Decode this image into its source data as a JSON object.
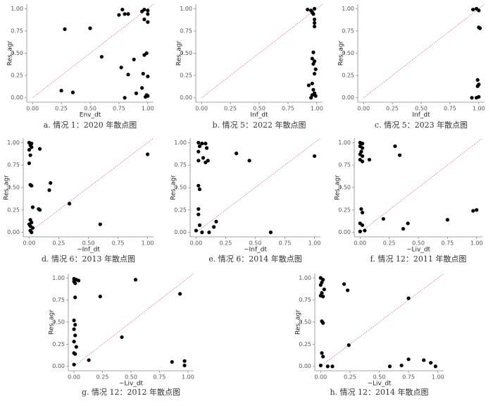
{
  "chart_data": [
    {
      "type": "scatter",
      "title": "a. 情况 1：2020 年散点图",
      "xlabel": "Env_dt",
      "ylabel": "Res_agr",
      "color": "#000000",
      "diagonal": true,
      "x": [
        0.28,
        0.5,
        0.6,
        0.25,
        0.35,
        0.75,
        0.78,
        0.8,
        0.83,
        0.77,
        0.8,
        0.88,
        0.9,
        0.95,
        0.97,
        1.0,
        1.0,
        0.97,
        1.0,
        0.97,
        0.99,
        0.96,
        1.0,
        0.95,
        0.99,
        1.0,
        0.98,
        0.83
      ],
      "y": [
        0.77,
        0.78,
        0.46,
        0.08,
        0.06,
        0.93,
        0.99,
        0.94,
        0.94,
        0.34,
        0.0,
        0.43,
        0.05,
        0.97,
        0.99,
        0.98,
        0.94,
        0.88,
        0.85,
        0.48,
        0.5,
        0.27,
        0.24,
        0.11,
        0.03,
        0.02,
        0.01,
        0.26
      ],
      "xlim": [
        -0.05,
        1.05
      ],
      "ylim": [
        -0.05,
        1.05
      ],
      "xticks": [
        {
          "value": 0,
          "label": "0.00"
        },
        {
          "value": 0.25,
          "label": "0.25"
        },
        {
          "value": 0.5,
          "label": "0.50"
        },
        {
          "value": 0.75,
          "label": "0.75"
        },
        {
          "value": 1,
          "label": "1.00"
        }
      ],
      "yticks": [
        {
          "value": 0,
          "label": "0.00"
        },
        {
          "value": 0.25,
          "label": "0.25"
        },
        {
          "value": 0.5,
          "label": "0.50"
        },
        {
          "value": 0.75,
          "label": "0.75"
        },
        {
          "value": 1,
          "label": "1.00"
        }
      ]
    },
    {
      "type": "scatter",
      "title": "b. 情况 5：2022 年散点图",
      "xlabel": "Inf_dt",
      "ylabel": "Res_agr",
      "color": "#000000",
      "diagonal": true,
      "x": [
        0.92,
        0.95,
        0.96,
        0.97,
        0.98,
        0.98,
        0.98,
        0.98,
        0.97,
        0.96,
        0.98,
        0.97,
        0.99,
        0.98,
        0.96,
        0.93,
        0.97,
        0.98,
        0.96,
        0.99,
        0.95
      ],
      "y": [
        0.99,
        0.98,
        0.96,
        0.94,
        1.0,
        0.88,
        0.84,
        0.8,
        0.51,
        0.44,
        0.41,
        0.38,
        0.32,
        0.27,
        0.16,
        0.14,
        0.09,
        0.05,
        0.03,
        0.02,
        0.0
      ],
      "xlim": [
        -0.05,
        1.05
      ],
      "ylim": [
        -0.05,
        1.05
      ],
      "xticks": [
        {
          "value": 0,
          "label": "0.00"
        },
        {
          "value": 0.25,
          "label": "0.25"
        },
        {
          "value": 0.5,
          "label": "0.50"
        },
        {
          "value": 0.75,
          "label": "0.75"
        },
        {
          "value": 1,
          "label": "1.00"
        }
      ],
      "yticks": [
        {
          "value": 0,
          "label": "0.00"
        },
        {
          "value": 0.25,
          "label": "0.25"
        },
        {
          "value": 0.5,
          "label": "0.50"
        },
        {
          "value": 0.75,
          "label": "0.75"
        },
        {
          "value": 1,
          "label": "1.00"
        }
      ]
    },
    {
      "type": "scatter",
      "title": "c. 情况 5：2023 年散点图",
      "xlabel": "Inf_dt",
      "ylabel": "Res_agr",
      "color": "#000000",
      "diagonal": true,
      "x": [
        0.95,
        0.98,
        1.0,
        1.0,
        1.01,
        0.99,
        1.0,
        0.99,
        0.94,
        0.98,
        1.0
      ],
      "y": [
        0.99,
        1.0,
        0.98,
        0.79,
        0.78,
        0.2,
        0.15,
        0.13,
        0.0,
        0.0,
        0.01
      ],
      "xlim": [
        -0.05,
        1.05
      ],
      "ylim": [
        -0.05,
        1.05
      ],
      "xticks": [
        {
          "value": 0,
          "label": "0.00"
        },
        {
          "value": 0.25,
          "label": "0.25"
        },
        {
          "value": 0.5,
          "label": "0.50"
        },
        {
          "value": 0.75,
          "label": "0.75"
        },
        {
          "value": 1,
          "label": "1.00"
        }
      ],
      "yticks": [
        {
          "value": 0,
          "label": "0.00"
        },
        {
          "value": 0.25,
          "label": "0.25"
        },
        {
          "value": 0.5,
          "label": "0.50"
        },
        {
          "value": 0.75,
          "label": "0.75"
        },
        {
          "value": 1,
          "label": "1.00"
        }
      ]
    },
    {
      "type": "scatter",
      "title": "d. 情况 6：2013 年散点图",
      "xlabel": "~Inf_dt",
      "ylabel": "Res_agr",
      "color": "#000000",
      "diagonal": true,
      "x": [
        0.0,
        0.02,
        0.01,
        0.02,
        0.0,
        0.01,
        0.0,
        0.09,
        0.01,
        0.02,
        0.18,
        0.17,
        0.03,
        0.08,
        0.09,
        0.34,
        0.01,
        0.02,
        0.0,
        0.01,
        0.03,
        0.01,
        0.02,
        0.6,
        1.0
      ],
      "y": [
        1.0,
        0.99,
        0.97,
        0.95,
        0.92,
        0.86,
        0.77,
        0.93,
        0.53,
        0.52,
        0.55,
        0.47,
        0.28,
        0.26,
        0.25,
        0.32,
        0.14,
        0.11,
        0.09,
        0.07,
        0.05,
        0.02,
        0.0,
        0.09,
        0.87
      ],
      "xlim": [
        -0.05,
        1.05
      ],
      "ylim": [
        -0.05,
        1.05
      ],
      "xticks": [
        {
          "value": 0,
          "label": "0.00"
        },
        {
          "value": 0.25,
          "label": "0.25"
        },
        {
          "value": 0.5,
          "label": "0.50"
        },
        {
          "value": 0.75,
          "label": "0.75"
        },
        {
          "value": 1,
          "label": "1.00"
        }
      ],
      "yticks": [
        {
          "value": 0,
          "label": "0.00"
        },
        {
          "value": 0.25,
          "label": "0.25"
        },
        {
          "value": 0.5,
          "label": "0.50"
        },
        {
          "value": 0.75,
          "label": "0.75"
        },
        {
          "value": 1,
          "label": "1.00"
        }
      ]
    },
    {
      "type": "scatter",
      "title": "e. 情况 6：2014 年散点图",
      "xlabel": "~Inf_dt",
      "ylabel": "Res_agr",
      "color": "#000000",
      "diagonal": true,
      "x": [
        0.02,
        0.05,
        0.08,
        0.03,
        0.09,
        0.02,
        0.06,
        0.1,
        0.08,
        0.02,
        0.34,
        0.45,
        1.0,
        0.02,
        0.03,
        0.02,
        0.02,
        0.17,
        0.15,
        0.03,
        0.0,
        0.05,
        0.11,
        0.63
      ],
      "y": [
        1.0,
        0.99,
        0.99,
        0.96,
        0.94,
        0.9,
        0.83,
        0.8,
        0.78,
        0.8,
        0.88,
        0.8,
        0.85,
        0.52,
        0.48,
        0.26,
        0.2,
        0.12,
        0.06,
        0.08,
        0.02,
        0.0,
        0.0,
        0.0
      ],
      "xlim": [
        -0.05,
        1.05
      ],
      "ylim": [
        -0.05,
        1.05
      ],
      "xticks": [
        {
          "value": 0,
          "label": "0.00"
        },
        {
          "value": 0.25,
          "label": "0.25"
        },
        {
          "value": 0.5,
          "label": "0.50"
        },
        {
          "value": 0.75,
          "label": "0.75"
        },
        {
          "value": 1,
          "label": "1.00"
        }
      ],
      "yticks": [
        {
          "value": 0,
          "label": "0.00"
        },
        {
          "value": 0.25,
          "label": "0.25"
        },
        {
          "value": 0.5,
          "label": "0.50"
        },
        {
          "value": 0.75,
          "label": "0.75"
        },
        {
          "value": 1,
          "label": "1.00"
        }
      ]
    },
    {
      "type": "scatter",
      "title": "f. 情况 12：2011 年散点图",
      "xlabel": "~Liv_dt",
      "ylabel": "Res_agr",
      "color": "#000000",
      "diagonal": true,
      "x": [
        0.0,
        0.02,
        0.0,
        0.02,
        0.01,
        0.0,
        0.02,
        0.0,
        0.02,
        0.08,
        0.3,
        0.34,
        0.01,
        0.02,
        0.0,
        0.02,
        0.04,
        0.0,
        0.2,
        0.37,
        0.41,
        0.75,
        0.97,
        1.0
      ],
      "y": [
        1.0,
        0.99,
        0.96,
        0.94,
        0.9,
        0.87,
        0.85,
        0.81,
        0.79,
        0.81,
        0.96,
        0.86,
        0.26,
        0.22,
        0.1,
        0.08,
        0.02,
        0.01,
        0.15,
        0.04,
        0.1,
        0.14,
        0.24,
        0.25
      ],
      "xlim": [
        -0.05,
        1.05
      ],
      "ylim": [
        -0.05,
        1.05
      ],
      "xticks": [
        {
          "value": 0,
          "label": "0.00"
        },
        {
          "value": 0.25,
          "label": "0.25"
        },
        {
          "value": 0.5,
          "label": "0.50"
        },
        {
          "value": 0.75,
          "label": "0.75"
        },
        {
          "value": 1,
          "label": "1.00"
        }
      ],
      "yticks": [
        {
          "value": 0,
          "label": "0.00"
        },
        {
          "value": 0.25,
          "label": "0.25"
        },
        {
          "value": 0.5,
          "label": "0.50"
        },
        {
          "value": 0.75,
          "label": "0.75"
        },
        {
          "value": 1,
          "label": "1.00"
        }
      ]
    },
    {
      "type": "scatter",
      "title": "g. 情况 12：2012 年散点图",
      "xlabel": "~Liv_dt",
      "ylabel": "Res_agr",
      "color": "#000000",
      "diagonal": true,
      "x": [
        0.0,
        0.02,
        0.0,
        0.01,
        0.04,
        0.01,
        0.23,
        0.54,
        0.93,
        0.0,
        0.01,
        0.0,
        0.01,
        0.0,
        0.02,
        0.0,
        0.01,
        0.13,
        0.42,
        0.86,
        0.97,
        0.97,
        0.0
      ],
      "y": [
        0.99,
        0.98,
        0.96,
        0.94,
        0.97,
        0.78,
        0.79,
        0.98,
        0.82,
        0.52,
        0.47,
        0.42,
        0.35,
        0.28,
        0.22,
        0.15,
        0.14,
        0.07,
        0.33,
        0.05,
        0.06,
        0.01,
        0.02
      ],
      "xlim": [
        -0.05,
        1.05
      ],
      "ylim": [
        -0.05,
        1.05
      ],
      "xticks": [
        {
          "value": 0,
          "label": "0.00"
        },
        {
          "value": 0.25,
          "label": "0.25"
        },
        {
          "value": 0.5,
          "label": "0.50"
        },
        {
          "value": 0.75,
          "label": "0.75"
        },
        {
          "value": 1,
          "label": "1.00"
        }
      ],
      "yticks": [
        {
          "value": 0,
          "label": "0.00"
        },
        {
          "value": 0.25,
          "label": "0.25"
        },
        {
          "value": 0.5,
          "label": "0.50"
        },
        {
          "value": 0.75,
          "label": "0.75"
        },
        {
          "value": 1,
          "label": "1.00"
        }
      ]
    },
    {
      "type": "scatter",
      "title": "h. 情况 12：2014 年散点图",
      "xlabel": "~Liv_dt",
      "ylabel": "Res_agr",
      "color": "#000000",
      "diagonal": true,
      "x": [
        0.0,
        0.02,
        0.01,
        0.0,
        0.03,
        0.01,
        0.0,
        0.02,
        0.2,
        0.23,
        0.75,
        0.01,
        0.02,
        0.01,
        0.02,
        0.24,
        0.0,
        0.06,
        0.1,
        0.59,
        0.69,
        0.75,
        0.88,
        0.94,
        0.98
      ],
      "y": [
        1.0,
        0.98,
        0.95,
        0.92,
        0.87,
        0.83,
        0.8,
        0.79,
        0.93,
        0.86,
        0.77,
        0.51,
        0.49,
        0.15,
        0.11,
        0.24,
        0.01,
        0.0,
        0.0,
        0.0,
        0.01,
        0.08,
        0.07,
        0.04,
        0.0
      ],
      "xlim": [
        -0.05,
        1.05
      ],
      "ylim": [
        -0.05,
        1.05
      ],
      "xticks": [
        {
          "value": 0,
          "label": "0.00"
        },
        {
          "value": 0.25,
          "label": "0.25"
        },
        {
          "value": 0.5,
          "label": "0.50"
        },
        {
          "value": 0.75,
          "label": "0.75"
        },
        {
          "value": 1,
          "label": "1.00"
        }
      ],
      "yticks": [
        {
          "value": 0,
          "label": "0.00"
        },
        {
          "value": 0.25,
          "label": "0.25"
        },
        {
          "value": 0.5,
          "label": "0.50"
        },
        {
          "value": 0.75,
          "label": "0.75"
        },
        {
          "value": 1,
          "label": "1.00"
        }
      ]
    }
  ]
}
